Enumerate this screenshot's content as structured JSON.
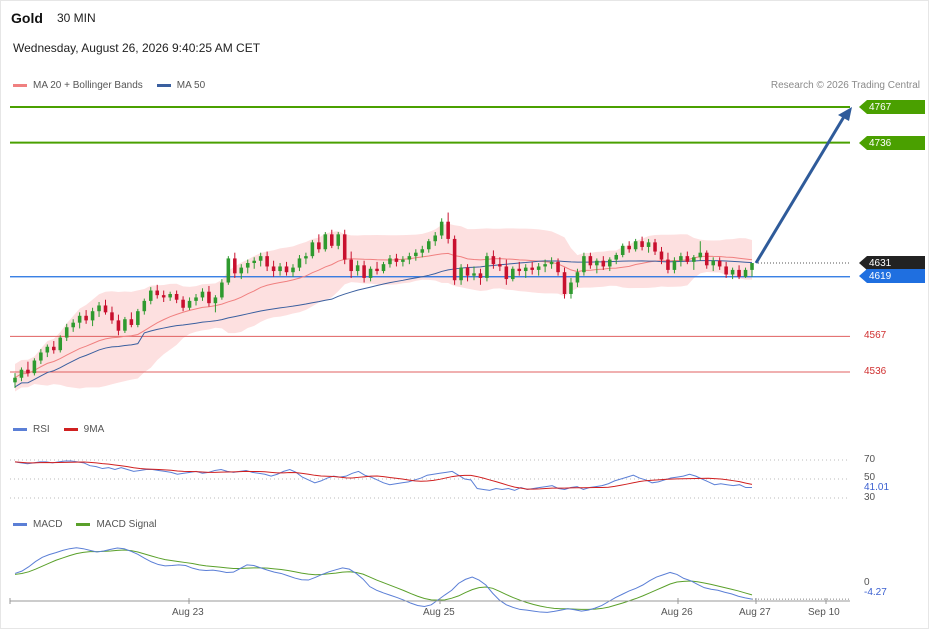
{
  "header": {
    "instrument": "Gold",
    "interval": "30 MIN",
    "datetime": "Wednesday, August 26, 2026 9:40:25 AM CET",
    "legend_ma20": "MA 20 + Bollinger Bands",
    "legend_ma50": "MA 50",
    "research": "Research © 2026 Trading Central"
  },
  "colors": {
    "ma20": "#f08080",
    "ma50": "#3a5f9f",
    "band_fill": "#fde0e0",
    "up_candle": "#2f9a2f",
    "down_candle": "#c8102e",
    "resistance": "#4aa000",
    "support": "#e06060",
    "pivot": "#1f6fe0",
    "last": "#222222",
    "rsi": "#5b7fd6",
    "rsi_ma": "#d02020",
    "macd": "#5b7fd6",
    "macd_signal": "#5aa02a",
    "arrow": "#2f5b9a"
  },
  "levels": {
    "r2": "4767",
    "r1": "4736",
    "last": "4631",
    "pivot": "4619",
    "s1": "4567",
    "s2": "4536"
  },
  "rsi": {
    "legend_rsi": "RSI",
    "legend_ma": "9MA",
    "tick_70": "70",
    "tick_50": "50",
    "tick_30": "30",
    "value": "41.01"
  },
  "macd": {
    "legend_macd": "MACD",
    "legend_signal": "MACD Signal",
    "tick_0": "0",
    "value": "-4.27"
  },
  "x_axis": {
    "labels": [
      "Aug 23",
      "Aug 25",
      "Aug 26",
      "Aug 27",
      "Sep 10"
    ]
  },
  "chart_data": {
    "type": "candlestick",
    "x_labels": [
      "Aug 23",
      "Aug 25",
      "Aug 26",
      "Aug 27",
      "Sep 10"
    ],
    "price_levels": [
      4767,
      4736,
      4631,
      4619,
      4567,
      4536
    ],
    "price_range": [
      4500,
      4780
    ],
    "candles_ohlc": [
      [
        4527,
        4535,
        4522,
        4531
      ],
      [
        4531,
        4540,
        4528,
        4538
      ],
      [
        4538,
        4545,
        4532,
        4535
      ],
      [
        4535,
        4548,
        4533,
        4546
      ],
      [
        4546,
        4556,
        4543,
        4553
      ],
      [
        4553,
        4560,
        4549,
        4558
      ],
      [
        4558,
        4563,
        4552,
        4555
      ],
      [
        4555,
        4568,
        4553,
        4566
      ],
      [
        4566,
        4578,
        4563,
        4575
      ],
      [
        4575,
        4582,
        4571,
        4579
      ],
      [
        4579,
        4588,
        4574,
        4585
      ],
      [
        4585,
        4590,
        4578,
        4581
      ],
      [
        4581,
        4592,
        4576,
        4589
      ],
      [
        4589,
        4597,
        4584,
        4594
      ],
      [
        4594,
        4599,
        4586,
        4588
      ],
      [
        4588,
        4593,
        4578,
        4581
      ],
      [
        4581,
        4586,
        4568,
        4572
      ],
      [
        4572,
        4584,
        4570,
        4582
      ],
      [
        4582,
        4588,
        4575,
        4577
      ],
      [
        4577,
        4591,
        4575,
        4589
      ],
      [
        4589,
        4600,
        4586,
        4598
      ],
      [
        4598,
        4610,
        4595,
        4607
      ],
      [
        4607,
        4612,
        4600,
        4603
      ],
      [
        4603,
        4607,
        4597,
        4601
      ],
      [
        4601,
        4606,
        4598,
        4604
      ],
      [
        4604,
        4607,
        4596,
        4599
      ],
      [
        4599,
        4602,
        4589,
        4592
      ],
      [
        4592,
        4601,
        4590,
        4598
      ],
      [
        4598,
        4604,
        4594,
        4601
      ],
      [
        4601,
        4609,
        4598,
        4606
      ],
      [
        4606,
        4611,
        4593,
        4596
      ],
      [
        4596,
        4603,
        4588,
        4601
      ],
      [
        4601,
        4617,
        4599,
        4614
      ],
      [
        4614,
        4637,
        4612,
        4635
      ],
      [
        4635,
        4640,
        4618,
        4622
      ],
      [
        4622,
        4630,
        4617,
        4627
      ],
      [
        4627,
        4634,
        4622,
        4631
      ],
      [
        4631,
        4636,
        4626,
        4633
      ],
      [
        4633,
        4640,
        4628,
        4637
      ],
      [
        4637,
        4641,
        4624,
        4628
      ],
      [
        4628,
        4633,
        4619,
        4624
      ],
      [
        4624,
        4631,
        4620,
        4628
      ],
      [
        4628,
        4632,
        4620,
        4623
      ],
      [
        4623,
        4630,
        4619,
        4627
      ],
      [
        4627,
        4638,
        4624,
        4635
      ],
      [
        4635,
        4640,
        4630,
        4637
      ],
      [
        4637,
        4651,
        4635,
        4649
      ],
      [
        4649,
        4656,
        4640,
        4643
      ],
      [
        4643,
        4658,
        4641,
        4656
      ],
      [
        4656,
        4660,
        4644,
        4646
      ],
      [
        4646,
        4658,
        4643,
        4656
      ],
      [
        4656,
        4660,
        4630,
        4634
      ],
      [
        4634,
        4641,
        4618,
        4624
      ],
      [
        4624,
        4633,
        4620,
        4629
      ],
      [
        4629,
        4633,
        4614,
        4618
      ],
      [
        4618,
        4628,
        4615,
        4626
      ],
      [
        4626,
        4632,
        4621,
        4624
      ],
      [
        4624,
        4632,
        4622,
        4630
      ],
      [
        4630,
        4638,
        4627,
        4635
      ],
      [
        4635,
        4639,
        4628,
        4632
      ],
      [
        4632,
        4637,
        4628,
        4634
      ],
      [
        4634,
        4640,
        4630,
        4637
      ],
      [
        4637,
        4643,
        4633,
        4640
      ],
      [
        4640,
        4646,
        4636,
        4643
      ],
      [
        4643,
        4652,
        4640,
        4650
      ],
      [
        4650,
        4658,
        4646,
        4655
      ],
      [
        4655,
        4670,
        4652,
        4667
      ],
      [
        4667,
        4675,
        4648,
        4652
      ],
      [
        4652,
        4655,
        4612,
        4616
      ],
      [
        4616,
        4630,
        4612,
        4627
      ],
      [
        4627,
        4630,
        4615,
        4620
      ],
      [
        4620,
        4628,
        4616,
        4622
      ],
      [
        4622,
        4626,
        4612,
        4618
      ],
      [
        4618,
        4640,
        4615,
        4637
      ],
      [
        4637,
        4642,
        4626,
        4630
      ],
      [
        4630,
        4636,
        4624,
        4628
      ],
      [
        4628,
        4634,
        4612,
        4617
      ],
      [
        4617,
        4628,
        4615,
        4626
      ],
      [
        4626,
        4632,
        4620,
        4624
      ],
      [
        4624,
        4630,
        4618,
        4627
      ],
      [
        4627,
        4632,
        4621,
        4625
      ],
      [
        4625,
        4631,
        4620,
        4628
      ],
      [
        4628,
        4634,
        4623,
        4630
      ],
      [
        4630,
        4636,
        4626,
        4632
      ],
      [
        4632,
        4635,
        4620,
        4623
      ],
      [
        4623,
        4627,
        4600,
        4604
      ],
      [
        4604,
        4618,
        4600,
        4614
      ],
      [
        4614,
        4626,
        4610,
        4623
      ],
      [
        4623,
        4640,
        4620,
        4637
      ],
      [
        4637,
        4640,
        4626,
        4629
      ],
      [
        4629,
        4635,
        4622,
        4633
      ],
      [
        4633,
        4637,
        4625,
        4628
      ],
      [
        4628,
        4636,
        4624,
        4634
      ],
      [
        4634,
        4640,
        4630,
        4638
      ],
      [
        4638,
        4648,
        4636,
        4646
      ],
      [
        4646,
        4650,
        4640,
        4643
      ],
      [
        4643,
        4652,
        4641,
        4650
      ],
      [
        4650,
        4654,
        4642,
        4645
      ],
      [
        4645,
        4652,
        4640,
        4649
      ],
      [
        4649,
        4652,
        4638,
        4641
      ],
      [
        4641,
        4645,
        4630,
        4634
      ],
      [
        4634,
        4640,
        4622,
        4625
      ],
      [
        4625,
        4636,
        4622,
        4633
      ],
      [
        4633,
        4640,
        4628,
        4637
      ],
      [
        4637,
        4641,
        4630,
        4632
      ],
      [
        4632,
        4638,
        4625,
        4636
      ],
      [
        4636,
        4650,
        4633,
        4640
      ],
      [
        4640,
        4642,
        4626,
        4629
      ],
      [
        4629,
        4636,
        4624,
        4633
      ],
      [
        4633,
        4636,
        4625,
        4628
      ],
      [
        4628,
        4632,
        4618,
        4621
      ],
      [
        4621,
        4627,
        4617,
        4625
      ],
      [
        4625,
        4629,
        4617,
        4619
      ],
      [
        4619,
        4627,
        4618,
        4625
      ],
      [
        4625,
        4630,
        4619,
        4631
      ]
    ],
    "ma20_label": "MA 20 + Bollinger Bands",
    "ma50_label": "MA 50",
    "rsi_values": [
      68,
      67,
      66,
      67,
      68,
      68,
      67,
      68,
      69,
      69,
      68,
      67,
      64,
      63,
      61,
      62,
      60,
      62,
      60,
      58,
      59,
      60,
      60,
      59,
      58,
      57,
      55,
      56,
      57,
      58,
      56,
      57,
      59,
      60,
      58,
      57,
      58,
      59,
      57,
      56,
      55,
      53,
      55,
      58,
      60,
      57,
      52,
      49,
      46,
      48,
      51,
      53,
      52,
      53,
      56,
      58,
      54,
      52,
      49,
      46,
      44,
      45,
      46,
      47,
      49,
      51,
      54,
      55,
      56,
      57,
      58,
      54,
      50,
      49,
      40,
      39,
      38,
      40,
      39,
      40,
      38,
      41,
      39,
      40,
      41,
      42,
      43,
      40,
      39,
      41,
      42,
      39,
      41,
      42,
      43,
      45,
      48,
      50,
      52,
      54,
      51,
      49,
      46,
      47,
      49,
      51,
      52,
      53,
      55,
      53,
      50,
      47,
      44,
      45,
      44,
      43,
      44,
      41,
      41
    ],
    "macd_values": [
      3.5,
      4.2,
      5.5,
      7.1,
      8.4,
      9.2,
      9.8,
      10.5,
      11.0,
      11.3,
      11.0,
      10.5,
      10.0,
      10.3,
      10.8,
      11.2,
      11.0,
      10.2,
      9.3,
      8.1,
      7.0,
      6.2,
      5.8,
      5.9,
      6.1,
      5.9,
      5.1,
      4.6,
      4.4,
      4.5,
      4.2,
      3.8,
      3.9,
      5.0,
      6.1,
      5.9,
      5.2,
      4.5,
      3.9,
      3.5,
      2.8,
      2.1,
      1.6,
      1.5,
      2.3,
      3.2,
      4.0,
      4.6,
      5.2,
      4.8,
      3.5,
      1.8,
      -0.5,
      -1.6,
      -2.4,
      -3.1,
      -3.8,
      -4.6,
      -5.5,
      -6.2,
      -6.5,
      -6.0,
      -4.5,
      -3.0,
      -1.6,
      0.5,
      1.7,
      2.4,
      1.5,
      0.0,
      -2.5,
      -4.6,
      -6.0,
      -6.8,
      -7.4,
      -7.6,
      -7.9,
      -8.2,
      -8.3,
      -8.0,
      -7.6,
      -7.2,
      -7.5,
      -7.9,
      -7.6,
      -7.0,
      -6.2,
      -5.0,
      -3.8,
      -2.8,
      -1.8,
      -1.0,
      0.0,
      1.3,
      2.4,
      3.1,
      3.8,
      3.2,
      2.0,
      1.3,
      0.2,
      -0.8,
      -1.3,
      -1.6,
      -2.2,
      -2.7,
      -3.4,
      -3.9,
      -4.27
    ],
    "macd_signal_values": [
      3.2,
      3.5,
      4.0,
      4.8,
      5.7,
      6.6,
      7.5,
      8.2,
      8.9,
      9.5,
      9.9,
      10.1,
      10.1,
      10.2,
      10.3,
      10.5,
      10.6,
      10.4,
      10.0,
      9.4,
      8.8,
      8.2,
      7.7,
      7.4,
      7.1,
      6.8,
      6.5,
      6.1,
      5.8,
      5.6,
      5.4,
      5.2,
      5.0,
      5.0,
      5.1,
      5.2,
      5.2,
      5.1,
      4.9,
      4.7,
      4.4,
      4.0,
      3.6,
      3.3,
      3.1,
      3.2,
      3.4,
      3.6,
      3.9,
      4.0,
      3.8,
      3.3,
      2.4,
      1.5,
      0.7,
      -0.1,
      -0.9,
      -1.7,
      -2.6,
      -3.4,
      -4.1,
      -4.5,
      -4.6,
      -4.5,
      -4.0,
      -3.3,
      -2.3,
      -1.4,
      -0.8,
      -0.6,
      -1.0,
      -1.9,
      -2.9,
      -3.8,
      -4.6,
      -5.3,
      -5.9,
      -6.4,
      -6.8,
      -7.1,
      -7.2,
      -7.2,
      -7.3,
      -7.4,
      -7.4,
      -7.3,
      -7.1,
      -6.7,
      -6.1,
      -5.5,
      -4.8,
      -4.1,
      -3.3,
      -2.4,
      -1.5,
      -0.6,
      0.3,
      0.9,
      1.1,
      1.2,
      1.0,
      0.6,
      0.2,
      -0.3,
      -0.8,
      -1.3,
      -1.8,
      -2.4,
      -3.0
    ]
  }
}
